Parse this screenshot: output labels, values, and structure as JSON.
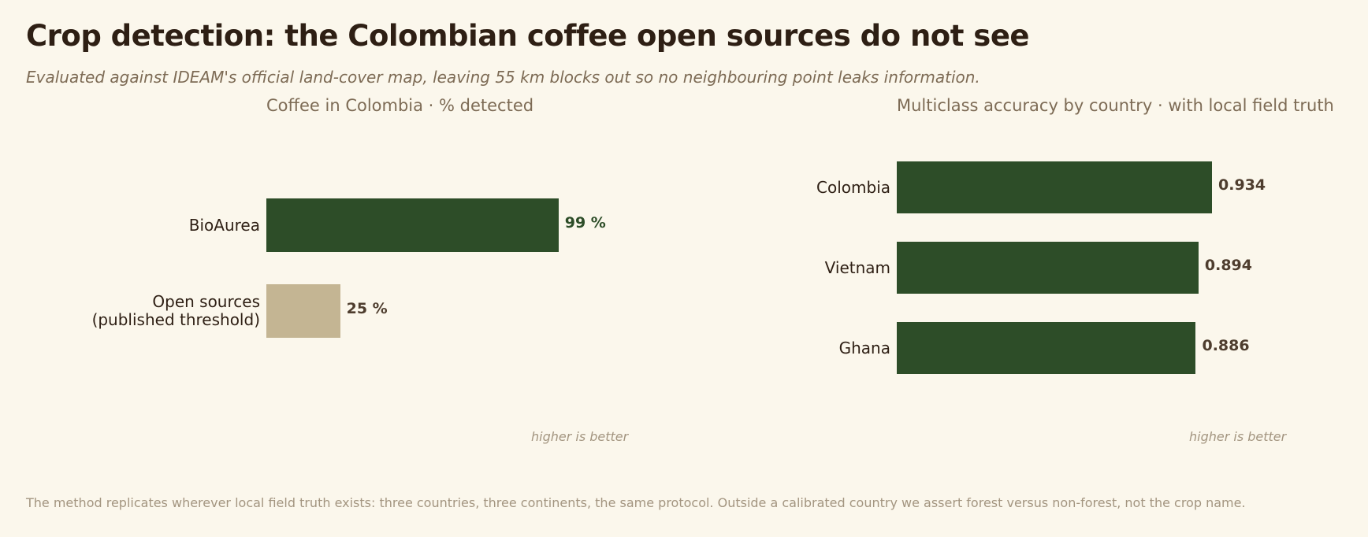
{
  "title": "Crop detection: the Colombian coffee open sources do not see",
  "subtitle": "Evaluated against IDEAM's official land-cover map, leaving 55 km blocks out so no neighbouring point leaks information.",
  "footer": "The method replicates wherever local field truth exists: three countries, three continents, the same protocol.  Outside a calibrated country we assert forest versus non-forest, not the crop name.",
  "colors": {
    "dark_green": "#2d4d28",
    "sand": "#c4b593",
    "value_dark": "#4e3d2e"
  },
  "chart_data": [
    {
      "type": "bar",
      "orientation": "horizontal",
      "title": "Coffee in Colombia  ·  % detected",
      "categories": [
        "BioAurea",
        "Open sources\n(published threshold)"
      ],
      "values": [
        99,
        25
      ],
      "value_labels": [
        "99 %",
        "25 %"
      ],
      "xlim": [
        0,
        100
      ],
      "note": "higher is better",
      "bar_colors": [
        "#2d4d28",
        "#c4b593"
      ],
      "value_label_colors": [
        "#2d4d28",
        "#4e3d2e"
      ]
    },
    {
      "type": "bar",
      "orientation": "horizontal",
      "title": "Multiclass accuracy by country  ·  with local field truth",
      "categories": [
        "Colombia",
        "Vietnam",
        "Ghana"
      ],
      "values": [
        0.934,
        0.894,
        0.886
      ],
      "value_labels": [
        "0.934",
        "0.894",
        "0.886"
      ],
      "xlim": [
        0,
        1
      ],
      "note": "higher is better",
      "bar_colors": [
        "#2d4d28",
        "#2d4d28",
        "#2d4d28"
      ],
      "value_label_colors": [
        "#4e3d2e",
        "#4e3d2e",
        "#4e3d2e"
      ]
    }
  ]
}
